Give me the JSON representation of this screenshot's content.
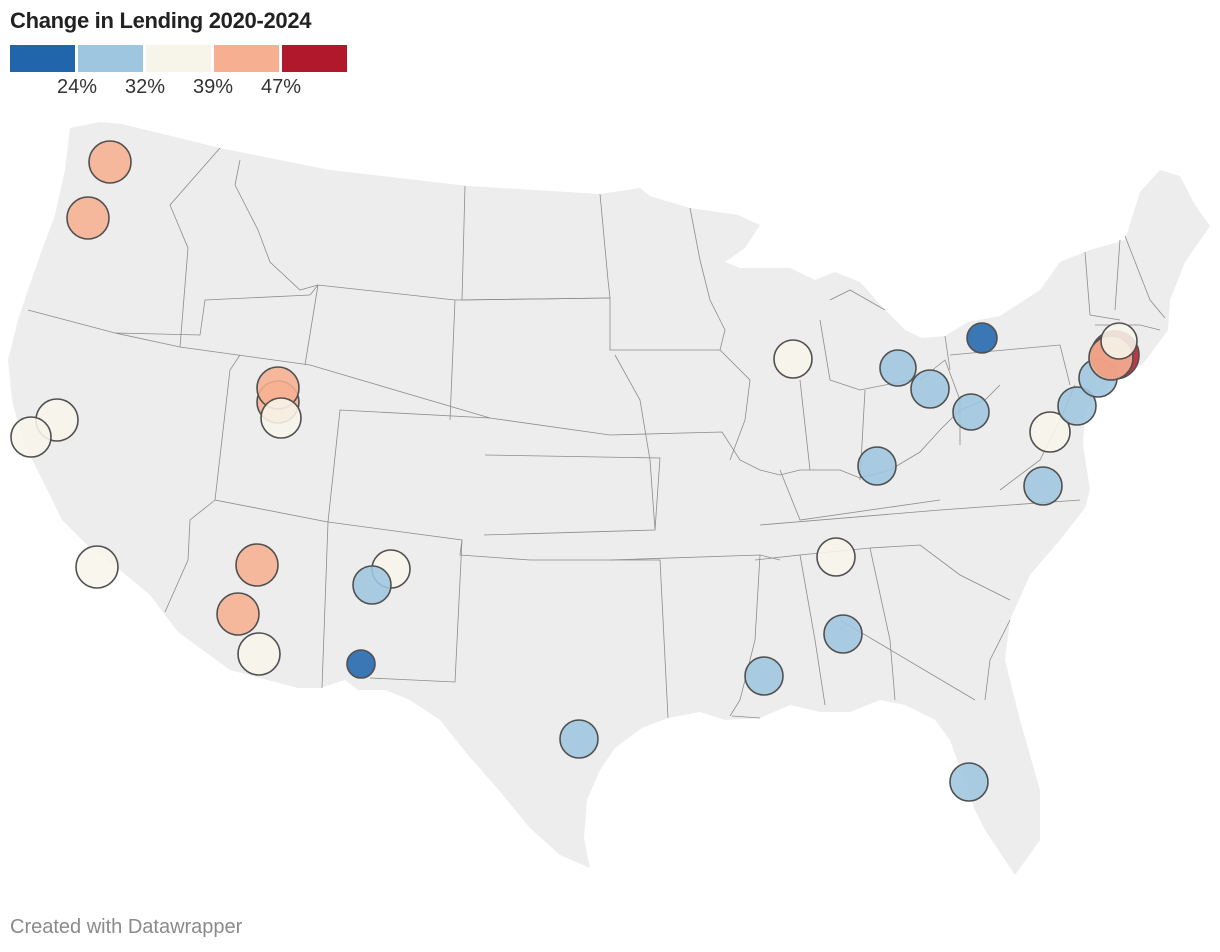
{
  "title": "Change in Lending 2020-2024",
  "credit": "Created with Datawrapper",
  "legend": {
    "colors": [
      "#2166ac",
      "#9ec6e0",
      "#f7f5ea",
      "#f6b091",
      "#b2182b"
    ],
    "labels": [
      "24%",
      "32%",
      "39%",
      "47%"
    ]
  },
  "colors": {
    "land": "#ededed",
    "border": "#8c8c8c",
    "marker_outline": "#505050"
  },
  "markers": [
    {
      "name": "seattle",
      "bin": 3
    },
    {
      "name": "portland",
      "bin": 3
    },
    {
      "name": "sacramento",
      "bin": 2
    },
    {
      "name": "san-francisco",
      "bin": 2
    },
    {
      "name": "los-angeles",
      "bin": 2
    },
    {
      "name": "salt-lake-city",
      "bin": 3
    },
    {
      "name": "ogden",
      "bin": 3
    },
    {
      "name": "provo",
      "bin": 2
    },
    {
      "name": "phoenix",
      "bin": 3
    },
    {
      "name": "tucson",
      "bin": 3
    },
    {
      "name": "sierra-vista",
      "bin": 2
    },
    {
      "name": "santa-fe",
      "bin": 2
    },
    {
      "name": "albuquerque",
      "bin": 1
    },
    {
      "name": "el-paso",
      "bin": 0
    },
    {
      "name": "san-antonio",
      "bin": 1
    },
    {
      "name": "chicago",
      "bin": 2
    },
    {
      "name": "detroit",
      "bin": 1
    },
    {
      "name": "toledo",
      "bin": 1
    },
    {
      "name": "pittsburgh",
      "bin": 1
    },
    {
      "name": "cincinnati",
      "bin": 1
    },
    {
      "name": "nashville",
      "bin": 2
    },
    {
      "name": "birmingham",
      "bin": 1
    },
    {
      "name": "jackson",
      "bin": 1
    },
    {
      "name": "orlando",
      "bin": 1
    },
    {
      "name": "richmond",
      "bin": 1
    },
    {
      "name": "washington-dc",
      "bin": 2
    },
    {
      "name": "philadelphia",
      "bin": 1
    },
    {
      "name": "new-jersey",
      "bin": 1
    },
    {
      "name": "new-york",
      "bin": 4
    },
    {
      "name": "long-island",
      "bin": 3
    },
    {
      "name": "hartford",
      "bin": 2
    },
    {
      "name": "rochester",
      "bin": 0
    }
  ]
}
